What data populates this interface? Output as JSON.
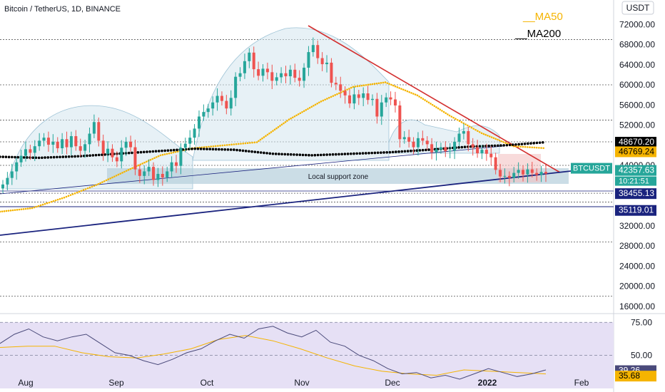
{
  "title": "Bitcoin / TetherUS, 1D, BINANCE",
  "currency_badge": "USDT",
  "legend": [
    {
      "name": "__MA50",
      "color": "#f5b400"
    },
    {
      "name": "__MA200",
      "color": "#000000"
    }
  ],
  "colors": {
    "up": "#26a69a",
    "down": "#ef5350",
    "trend_down": "#d32f2f",
    "trend_up": "#1a237e",
    "zone": "#b5cfdc",
    "dome": "#d4e5ee",
    "rsi_band": "#e6e0f5",
    "rsi_line": "#4a4a7a",
    "rsi_ma": "#f5b400"
  },
  "chart_data": {
    "type": "candlestick",
    "symbol": "BTCUSDT",
    "ylim": [
      12000,
      76000
    ],
    "yticks": [
      72000,
      68000,
      64000,
      60000,
      56000,
      52000,
      44000,
      32000,
      28000,
      24000,
      20000,
      16000
    ],
    "xlabels": [
      "Aug",
      "Sep",
      "Oct",
      "Nov",
      "Dec",
      "2022",
      "Feb"
    ],
    "annotation": "Local support zone",
    "price_labels": [
      {
        "text": "48670.20",
        "value": 48670.2,
        "style": "black"
      },
      {
        "text": "46769.24",
        "value": 46769.24,
        "style": "yellow"
      },
      {
        "text": "BTCUSDT",
        "value": 42357.63,
        "style": "teal-tag"
      },
      {
        "text": "42357.63",
        "value": 42357.63,
        "style": "teal"
      },
      {
        "text": "10:21:51",
        "value": 42357.63,
        "style": "teal-sub"
      },
      {
        "text": "38455.13",
        "value": 38455.13,
        "style": "navy"
      },
      {
        "text": "35119.01",
        "value": 35119.01,
        "style": "navy"
      }
    ],
    "horizontal_levels": [
      69000,
      60000,
      53000,
      48670,
      44000,
      38455,
      36700,
      28800,
      18000
    ],
    "series": [
      {
        "name": "price",
        "values": [
          40200,
          41500,
          42800,
          44600,
          45900,
          47200,
          46500,
          47800,
          48900,
          49500,
          48100,
          48700,
          47400,
          49200,
          47600,
          49800,
          47800,
          46900,
          48200,
          50300,
          52600,
          48900,
          46300,
          47300,
          45600,
          44800,
          47500,
          48700,
          47600,
          43200,
          41900,
          42800,
          43700,
          41100,
          42300,
          41600,
          42800,
          44600,
          43900,
          47500,
          48300,
          49500,
          51300,
          53700,
          54600,
          55300,
          56500,
          57800,
          56800,
          55300,
          57400,
          61600,
          62300,
          64700,
          66400,
          63100,
          61800,
          63200,
          62500,
          60800,
          61500,
          62300,
          61700,
          63000,
          61400,
          60800,
          63400,
          66500,
          67900,
          65300,
          64100,
          64400,
          60400,
          60100,
          58800,
          57900,
          56300,
          58100,
          57400,
          58300,
          57000,
          57200,
          53700,
          56500,
          57500,
          57100,
          55900,
          49200,
          49600,
          48700,
          47600,
          49400,
          48900,
          48200,
          46600,
          47200,
          47600,
          46800,
          46900,
          48700,
          50300,
          50800,
          48200,
          47600,
          46400,
          47100,
          46300,
          45600,
          43100,
          41800,
          41900,
          41500,
          42500,
          43100,
          42200,
          43200,
          42500,
          42100,
          42700,
          42357
        ]
      },
      {
        "name": "MA50",
        "values": [
          34800,
          35500,
          37600,
          40100,
          43100,
          46000,
          47400,
          48000,
          48600,
          53100,
          56700,
          59600,
          60500,
          57900,
          53900,
          50400,
          47800,
          47400
        ]
      },
      {
        "name": "MA200",
        "values": [
          45700,
          45500,
          45800,
          46300,
          46800,
          47300,
          47100,
          46300,
          46000,
          46300,
          46600,
          47100,
          47700,
          48000,
          48600
        ]
      },
      {
        "name": "RSI",
        "values": [
          59,
          66,
          70,
          64,
          61,
          64,
          66,
          59,
          52,
          50,
          46,
          43,
          47,
          52,
          55,
          61,
          66,
          63,
          70,
          72,
          67,
          64,
          69,
          60,
          57,
          50,
          46,
          40,
          36,
          37,
          33,
          35,
          32,
          36,
          40,
          37,
          34,
          36,
          39
        ]
      },
      {
        "name": "RSI MA",
        "values": [
          56,
          57,
          57,
          52,
          49,
          48,
          51,
          55,
          62,
          65,
          61,
          55,
          48,
          42,
          38,
          36,
          35,
          39,
          38,
          37,
          36
        ]
      }
    ],
    "rsi": {
      "ylim": [
        25,
        80
      ],
      "levels": [
        75.0,
        50.0
      ],
      "level_labels": [
        "75.00",
        "50.00"
      ],
      "rsi_label": "39.26",
      "rsi_label_value": 39.26,
      "rsi_ma_label": "35.68",
      "rsi_ma_label_value": 35.68
    }
  }
}
